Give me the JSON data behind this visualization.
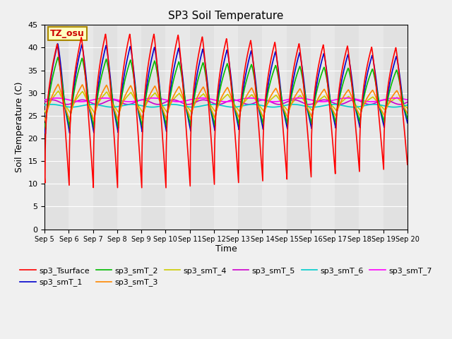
{
  "title": "SP3 Soil Temperature",
  "ylabel": "Soil Temperature (C)",
  "xlabel": "Time",
  "ylim": [
    0,
    45
  ],
  "yticks": [
    0,
    5,
    10,
    15,
    20,
    25,
    30,
    35,
    40,
    45
  ],
  "tz_label": "TZ_osu",
  "series_colors": {
    "sp3_Tsurface": "#FF0000",
    "sp3_smT_1": "#0000CC",
    "sp3_smT_2": "#00BB00",
    "sp3_smT_3": "#FF8800",
    "sp3_smT_4": "#CCCC00",
    "sp3_smT_5": "#CC00CC",
    "sp3_smT_6": "#00CCCC",
    "sp3_smT_7": "#FF00FF"
  },
  "background_color": "#E8E8E8",
  "linewidth": 1.2
}
